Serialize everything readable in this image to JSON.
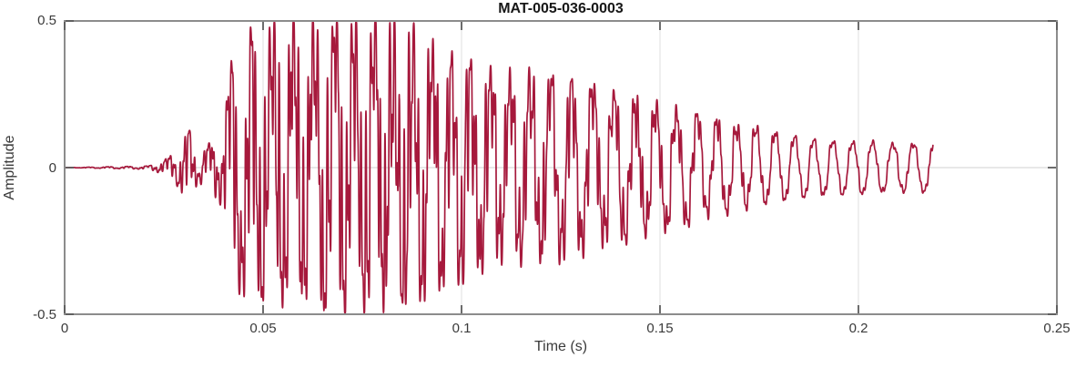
{
  "figure": {
    "background": "#ffffff",
    "line_color": "#A6193C",
    "axis_box_color": "#8c8c8c",
    "tick_color": "#5c5c5c",
    "grid_color": "#e4e4e4",
    "zero_line_color": "#d9d9d9",
    "label_color": "#3a3a3a",
    "title_color": "#171717"
  },
  "chart_data": {
    "type": "line",
    "title": "MAT-005-036-0003",
    "xlabel": "Time (s)",
    "ylabel": "Amplitude",
    "xlim": [
      0,
      0.25
    ],
    "ylim": [
      -0.5,
      0.5
    ],
    "xticks": [
      0,
      0.05,
      0.1,
      0.15,
      0.2,
      0.25
    ],
    "xtick_labels": [
      "0",
      "0.05",
      "0.1",
      "0.15",
      "0.2",
      "0.25"
    ],
    "yticks": [
      -0.5,
      0,
      0.5
    ],
    "ytick_labels": [
      "-0.5",
      "0",
      "0.5"
    ],
    "grid": true,
    "legend": null,
    "series": [
      {
        "name": "MAT-005-036-0003 waveform",
        "description": "Impact/acoustic burst: flat at 0 until ~0.023 s, small precursor burst ~0.028-0.034 s (peak ~0.13), main burst from ~0.041 s peaking ~±0.47 near 0.05-0.08 s, slowly decaying ring-down ending at ~0.219 s with residual ~±0.09"
      }
    ],
    "signal": {
      "onset_s": 0.023,
      "end_s": 0.2188,
      "dominant_freq_hz": 197,
      "secondary_freq_hz": 830,
      "tertiary_freq_hz": 1650,
      "peak_amplitude": 0.47,
      "envelope_points": [
        [
          0,
          0
        ],
        [
          0.021,
          0.005
        ],
        [
          0.0245,
          0.02
        ],
        [
          0.028,
          0.05
        ],
        [
          0.031,
          0.13
        ],
        [
          0.0335,
          0.05
        ],
        [
          0.037,
          0.08
        ],
        [
          0.0395,
          0.12
        ],
        [
          0.042,
          0.33
        ],
        [
          0.046,
          0.43
        ],
        [
          0.052,
          0.45
        ],
        [
          0.062,
          0.46
        ],
        [
          0.072,
          0.46
        ],
        [
          0.079,
          0.47
        ],
        [
          0.087,
          0.44
        ],
        [
          0.094,
          0.4
        ],
        [
          0.101,
          0.35
        ],
        [
          0.11,
          0.32
        ],
        [
          0.12,
          0.31
        ],
        [
          0.13,
          0.29
        ],
        [
          0.14,
          0.26
        ],
        [
          0.15,
          0.22
        ],
        [
          0.16,
          0.19
        ],
        [
          0.17,
          0.16
        ],
        [
          0.18,
          0.13
        ],
        [
          0.19,
          0.105
        ],
        [
          0.2,
          0.1
        ],
        [
          0.21,
          0.09
        ],
        [
          0.2188,
          0.095
        ]
      ]
    }
  }
}
